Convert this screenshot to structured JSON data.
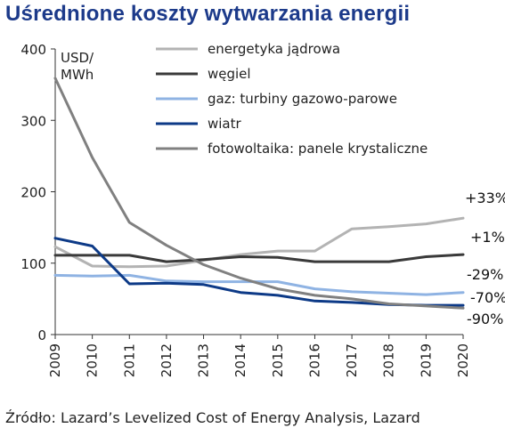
{
  "title": "Uśrednione koszty wytwarzania energii",
  "source": "Źródło: Lazard’s Levelized Cost of Energy Analysis, Lazard",
  "chart_data": {
    "type": "line",
    "ylabel": "USD/\nMWh",
    "ylim": [
      0,
      400
    ],
    "yticks": [
      0,
      100,
      200,
      300,
      400
    ],
    "x": [
      "2009",
      "2010",
      "2011",
      "2012",
      "2013",
      "2014",
      "2015",
      "2016",
      "2017",
      "2018",
      "2019",
      "2020"
    ],
    "grid": false,
    "legend_position": "top-right",
    "series": [
      {
        "name": "energetyka jądrowa",
        "color": "#b3b3b3",
        "values": [
          123,
          96,
          95,
          96,
          104,
          112,
          117,
          117,
          148,
          151,
          155,
          163
        ]
      },
      {
        "name": "węgiel",
        "color": "#3a3a3a",
        "values": [
          111,
          111,
          111,
          102,
          105,
          109,
          108,
          102,
          102,
          102,
          109,
          112
        ]
      },
      {
        "name": "gaz: turbiny gazowo-parowe",
        "color": "#8fb3e3",
        "values": [
          83,
          82,
          83,
          75,
          74,
          74,
          74,
          64,
          60,
          58,
          56,
          59
        ]
      },
      {
        "name": "wiatr",
        "color": "#0d3a87",
        "values": [
          135,
          124,
          71,
          72,
          70,
          59,
          55,
          47,
          45,
          42,
          41,
          41
        ]
      },
      {
        "name": "fotowoltaika: panele krystaliczne",
        "color": "#808080",
        "values": [
          359,
          248,
          157,
          125,
          98,
          79,
          64,
          55,
          50,
          43,
          40,
          37
        ]
      }
    ],
    "annotations": [
      "+33%",
      "+1%",
      "-29%",
      "-70%",
      "-90%"
    ]
  }
}
